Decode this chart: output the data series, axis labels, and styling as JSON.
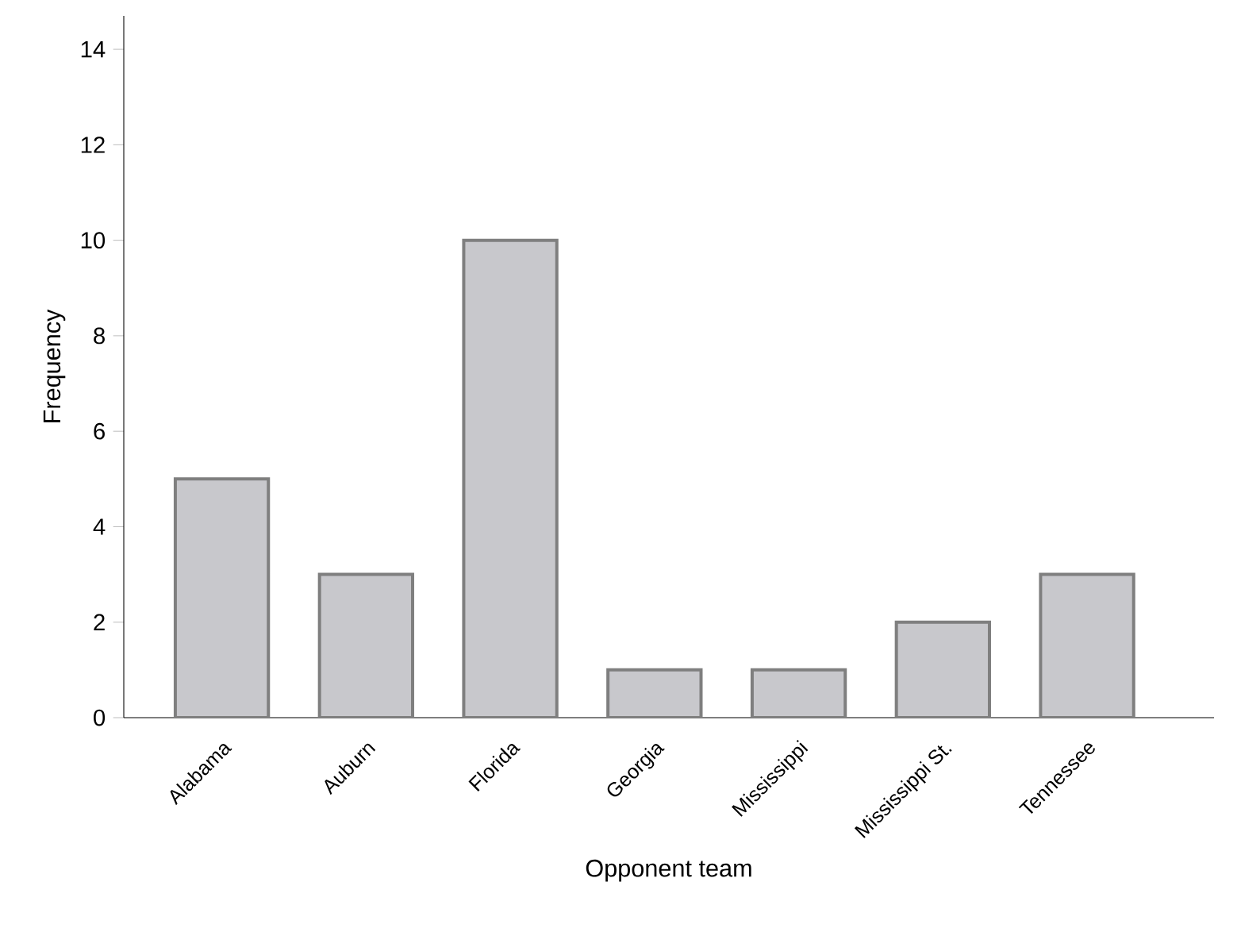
{
  "chart_data": {
    "type": "bar",
    "xlabel": "Opponent team",
    "ylabel": "Frequency",
    "categories": [
      "Alabama",
      "Auburn",
      "Florida",
      "Georgia",
      "Mississippi",
      "Mississippi St.",
      "Tennessee"
    ],
    "values": [
      5,
      3,
      10,
      1,
      1,
      2,
      3
    ],
    "color": "#c8c8cc",
    "ylim": [
      0,
      14.7
    ],
    "yticks": [
      0,
      2,
      4,
      6,
      8,
      10,
      12,
      14
    ]
  }
}
